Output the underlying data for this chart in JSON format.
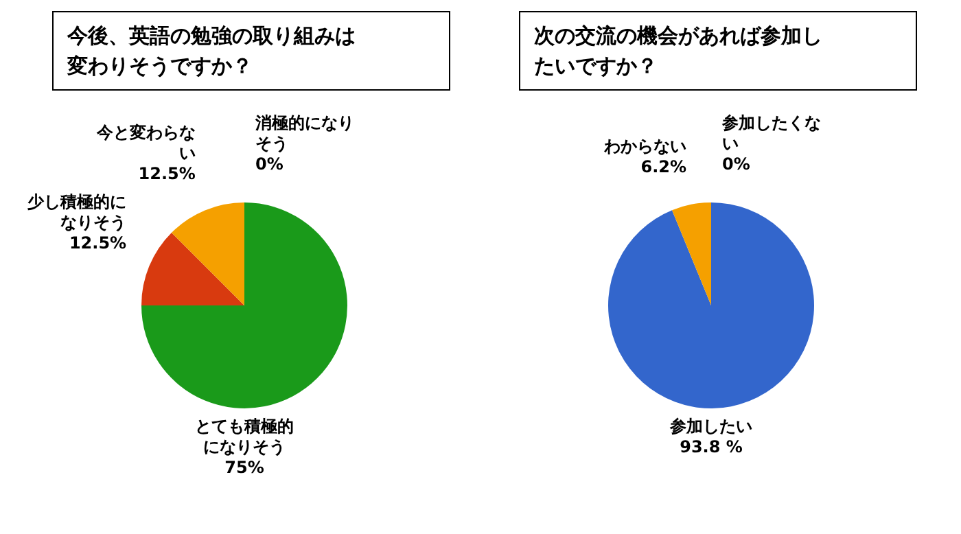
{
  "chart_data": [
    {
      "type": "pie",
      "title": "今後、英語の勉強の取り組みは変わりそうですか？",
      "categories": [
        "とても積極的になりそう",
        "少し積極的になりそう",
        "今と変わらない",
        "消極的になりそう"
      ],
      "values": [
        75,
        12.5,
        12.5,
        0
      ],
      "colors": [
        "#1a9a1a",
        "#d83a0f",
        "#f5a000",
        "#888888"
      ],
      "value_labels": [
        "75%",
        "12.5%",
        "12.5%",
        "0%"
      ]
    },
    {
      "type": "pie",
      "title": "次の交流の機会があれば参加したいですか？",
      "categories": [
        "参加したい",
        "わからない",
        "参加したくない"
      ],
      "values": [
        93.8,
        6.2,
        0
      ],
      "colors": [
        "#3366cc",
        "#f5a000",
        "#888888"
      ],
      "value_labels": [
        "93.8 %",
        "6.2%",
        "0%"
      ]
    }
  ]
}
